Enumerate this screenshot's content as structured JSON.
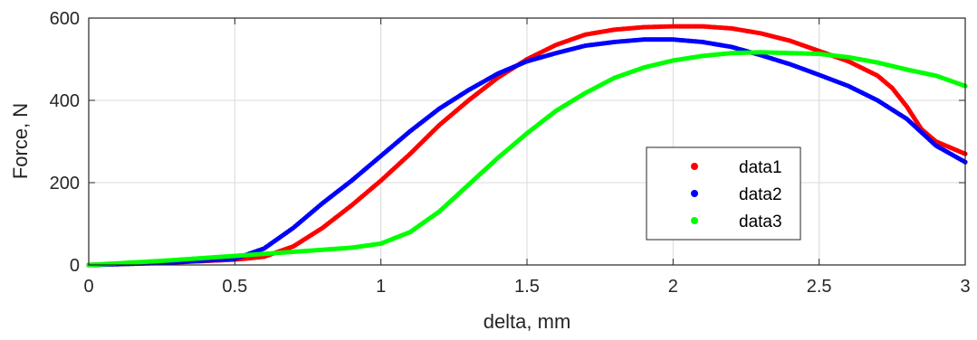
{
  "chart_data": {
    "type": "scatter",
    "title": "",
    "xlabel": "delta, mm",
    "ylabel": "Force, N",
    "xlim": [
      0,
      3
    ],
    "ylim": [
      0,
      600
    ],
    "xticks": [
      0,
      0.5,
      1,
      1.5,
      2,
      2.5,
      3
    ],
    "xtick_labels": [
      "0",
      "0.5",
      "1",
      "1.5",
      "2",
      "2.5",
      "3"
    ],
    "yticks": [
      0,
      200,
      400,
      600
    ],
    "ytick_labels": [
      "0",
      "200",
      "400",
      "600"
    ],
    "grid": true,
    "legend": "inside-lower-right",
    "colors": {
      "data1": "#ff0000",
      "data2": "#0000ff",
      "data3": "#00ff00",
      "grid": "#d9d9d9",
      "axis": "#262626"
    },
    "series": [
      {
        "name": "data1",
        "color": "#ff0000",
        "points": [
          [
            0,
            0
          ],
          [
            0.25,
            5
          ],
          [
            0.5,
            13
          ],
          [
            0.6,
            20
          ],
          [
            0.7,
            45
          ],
          [
            0.8,
            90
          ],
          [
            0.9,
            145
          ],
          [
            1.0,
            205
          ],
          [
            1.1,
            270
          ],
          [
            1.2,
            340
          ],
          [
            1.3,
            400
          ],
          [
            1.4,
            455
          ],
          [
            1.5,
            500
          ],
          [
            1.6,
            535
          ],
          [
            1.7,
            560
          ],
          [
            1.8,
            572
          ],
          [
            1.9,
            578
          ],
          [
            2.0,
            580
          ],
          [
            2.1,
            580
          ],
          [
            2.2,
            575
          ],
          [
            2.3,
            563
          ],
          [
            2.4,
            545
          ],
          [
            2.5,
            520
          ],
          [
            2.6,
            495
          ],
          [
            2.7,
            460
          ],
          [
            2.75,
            430
          ],
          [
            2.8,
            385
          ],
          [
            2.85,
            330
          ],
          [
            2.9,
            300
          ],
          [
            3.0,
            270
          ]
        ]
      },
      {
        "name": "data2",
        "color": "#0000ff",
        "points": [
          [
            0,
            0
          ],
          [
            0.25,
            5
          ],
          [
            0.5,
            15
          ],
          [
            0.6,
            40
          ],
          [
            0.7,
            90
          ],
          [
            0.8,
            150
          ],
          [
            0.9,
            205
          ],
          [
            1.0,
            265
          ],
          [
            1.1,
            325
          ],
          [
            1.2,
            380
          ],
          [
            1.3,
            425
          ],
          [
            1.4,
            465
          ],
          [
            1.5,
            495
          ],
          [
            1.6,
            515
          ],
          [
            1.7,
            533
          ],
          [
            1.8,
            542
          ],
          [
            1.9,
            548
          ],
          [
            2.0,
            548
          ],
          [
            2.1,
            542
          ],
          [
            2.2,
            530
          ],
          [
            2.3,
            510
          ],
          [
            2.4,
            488
          ],
          [
            2.5,
            462
          ],
          [
            2.6,
            435
          ],
          [
            2.7,
            400
          ],
          [
            2.8,
            355
          ],
          [
            2.9,
            290
          ],
          [
            3.0,
            250
          ]
        ]
      },
      {
        "name": "data3",
        "color": "#00ff00",
        "points": [
          [
            0,
            0
          ],
          [
            0.25,
            10
          ],
          [
            0.5,
            22
          ],
          [
            0.7,
            32
          ],
          [
            0.9,
            42
          ],
          [
            1.0,
            52
          ],
          [
            1.1,
            80
          ],
          [
            1.2,
            130
          ],
          [
            1.3,
            195
          ],
          [
            1.4,
            260
          ],
          [
            1.5,
            320
          ],
          [
            1.6,
            375
          ],
          [
            1.7,
            418
          ],
          [
            1.8,
            455
          ],
          [
            1.9,
            480
          ],
          [
            2.0,
            497
          ],
          [
            2.1,
            508
          ],
          [
            2.2,
            515
          ],
          [
            2.3,
            517
          ],
          [
            2.4,
            515
          ],
          [
            2.5,
            513
          ],
          [
            2.6,
            505
          ],
          [
            2.7,
            492
          ],
          [
            2.8,
            475
          ],
          [
            2.9,
            460
          ],
          [
            3.0,
            435
          ]
        ]
      }
    ]
  }
}
